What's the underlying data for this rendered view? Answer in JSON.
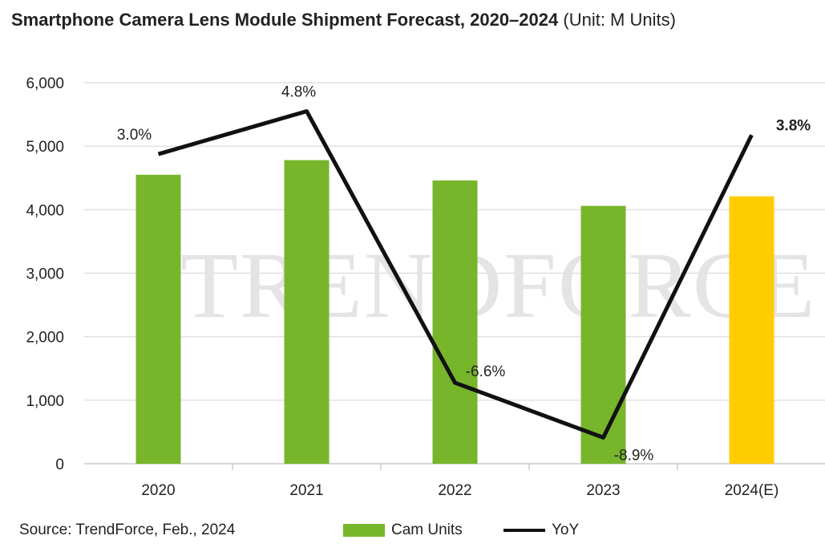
{
  "header": {
    "title": "Smartphone Camera Lens Module Shipment Forecast, 2020–2024",
    "unit": "(Unit: M Units)"
  },
  "watermark": "TRENDFORCE",
  "footer": {
    "source": "Source: TrendForce, Feb., 2024"
  },
  "colors": {
    "bar": "#77b52b",
    "bar_forecast": "#ffcc00",
    "line": "#111111",
    "grid": "#d9d9d9",
    "watermark": "#e4e4e4"
  },
  "chart_data": {
    "type": "bar",
    "title": "Smartphone Camera Lens Module Shipment Forecast, 2020–2024",
    "categories": [
      "2020",
      "2021",
      "2022",
      "2023",
      "2024(E)"
    ],
    "series": [
      {
        "name": "Cam Units",
        "type": "bar",
        "values": [
          4550,
          4780,
          4460,
          4060,
          4210
        ]
      },
      {
        "name": "YoY",
        "type": "line",
        "values": [
          3.0,
          4.8,
          -6.6,
          -8.9,
          3.8
        ],
        "labels": [
          "3.0%",
          "4.8%",
          "-6.6%",
          "-8.9%",
          "3.8%"
        ]
      }
    ],
    "forecast_index": 4,
    "y_ticks": [
      "0",
      "1,000",
      "2,000",
      "3,000",
      "4,000",
      "5,000",
      "6,000"
    ],
    "ylim": [
      0,
      6000
    ],
    "yoy_range": [
      -10,
      6
    ],
    "xlabel": "",
    "ylabel": "",
    "grid": true,
    "legend": "bottom"
  }
}
